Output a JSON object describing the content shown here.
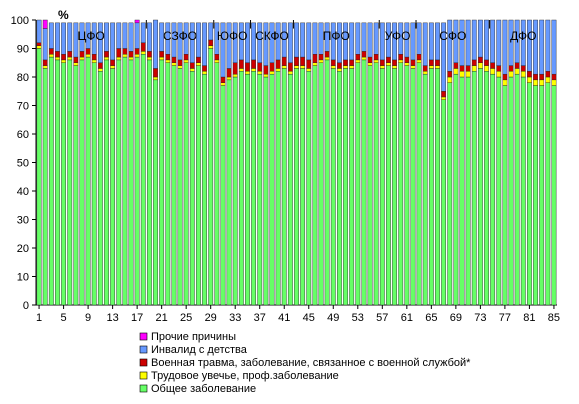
{
  "chart_data": {
    "type": "bar",
    "stacked": true,
    "ylabel": "%",
    "ylim": [
      0,
      100
    ],
    "yticks": [
      0,
      10,
      20,
      30,
      40,
      50,
      60,
      70,
      80,
      90,
      100
    ],
    "xticks": [
      1,
      5,
      9,
      13,
      17,
      21,
      25,
      29,
      33,
      37,
      41,
      45,
      49,
      53,
      57,
      61,
      65,
      69,
      73,
      77,
      81,
      85
    ],
    "grid": false,
    "legend_position": "bottom-left",
    "categories": [
      1,
      2,
      3,
      4,
      5,
      6,
      7,
      8,
      9,
      10,
      11,
      12,
      13,
      14,
      15,
      16,
      17,
      18,
      19,
      20,
      21,
      22,
      23,
      24,
      25,
      26,
      27,
      28,
      29,
      30,
      31,
      32,
      33,
      34,
      35,
      36,
      37,
      38,
      39,
      40,
      41,
      42,
      43,
      44,
      45,
      46,
      47,
      48,
      49,
      50,
      51,
      52,
      53,
      54,
      55,
      56,
      57,
      58,
      59,
      60,
      61,
      62,
      63,
      64,
      65,
      66,
      67,
      68,
      69,
      70,
      71,
      72,
      73,
      74,
      75,
      76,
      77,
      78,
      79,
      80,
      81,
      82,
      83,
      84,
      85
    ],
    "series": [
      {
        "name": "Общее заболевание",
        "color": "#66FF66",
        "values": [
          90,
          83,
          87,
          86,
          85,
          86,
          84,
          86,
          87,
          85,
          82,
          86,
          83,
          86,
          87,
          86,
          87,
          88,
          86,
          79,
          86,
          85,
          84,
          83,
          85,
          82,
          84,
          81,
          90,
          85,
          77,
          79,
          80,
          82,
          81,
          82,
          81,
          80,
          81,
          82,
          83,
          81,
          83,
          83,
          82,
          84,
          85,
          86,
          83,
          82,
          83,
          83,
          85,
          86,
          84,
          85,
          83,
          84,
          83,
          85,
          84,
          83,
          85,
          81,
          83,
          83,
          72,
          78,
          81,
          80,
          80,
          82,
          83,
          82,
          81,
          80,
          77,
          80,
          81,
          80,
          78,
          77,
          77,
          78,
          77
        ]
      },
      {
        "name": "Трудовое увечье, проф.заболевание",
        "color": "#FFFF00",
        "values": [
          1,
          1,
          1,
          1,
          1,
          1,
          1,
          1,
          1,
          1,
          1,
          1,
          1,
          1,
          1,
          1,
          1,
          1,
          1,
          1,
          1,
          1,
          1,
          1,
          1,
          1,
          1,
          1,
          1,
          1,
          1,
          1,
          1,
          1,
          1,
          1,
          1,
          1,
          1,
          1,
          1,
          1,
          1,
          1,
          1,
          1,
          1,
          1,
          1,
          1,
          1,
          1,
          1,
          1,
          1,
          1,
          1,
          1,
          1,
          1,
          1,
          1,
          1,
          1,
          1,
          1,
          1,
          2,
          2,
          2,
          2,
          2,
          2,
          2,
          2,
          2,
          2,
          2,
          2,
          2,
          2,
          2,
          2,
          2,
          2
        ]
      },
      {
        "name": "Военная травма, заболевание, связанное с военной службой*",
        "color": "#CC0000",
        "values": [
          1,
          2,
          2,
          2,
          2,
          2,
          2,
          2,
          2,
          2,
          2,
          2,
          2,
          3,
          2,
          2,
          2,
          3,
          2,
          3,
          2,
          2,
          2,
          2,
          2,
          2,
          2,
          2,
          2,
          2,
          2,
          3,
          4,
          3,
          3,
          3,
          3,
          3,
          3,
          3,
          3,
          3,
          3,
          3,
          3,
          3,
          2,
          2,
          2,
          2,
          2,
          2,
          2,
          2,
          2,
          2,
          2,
          2,
          2,
          2,
          2,
          2,
          2,
          2,
          2,
          2,
          2,
          2,
          2,
          2,
          2,
          2,
          2,
          2,
          2,
          2,
          2,
          2,
          2,
          2,
          2,
          2,
          2,
          2,
          2
        ]
      },
      {
        "name": "Инвалид с детства",
        "color": "#6699FF",
        "values": [
          8,
          11,
          9,
          10,
          11,
          10,
          12,
          10,
          9,
          11,
          14,
          10,
          13,
          9,
          9,
          10,
          9,
          7,
          10,
          17,
          10,
          11,
          12,
          13,
          11,
          14,
          12,
          15,
          6,
          11,
          19,
          16,
          14,
          13,
          14,
          13,
          14,
          15,
          14,
          13,
          12,
          14,
          12,
          12,
          13,
          11,
          11,
          10,
          13,
          14,
          13,
          13,
          11,
          10,
          12,
          11,
          13,
          12,
          13,
          11,
          12,
          13,
          11,
          15,
          13,
          13,
          24,
          18,
          15,
          16,
          16,
          14,
          13,
          14,
          15,
          16,
          19,
          16,
          15,
          16,
          18,
          19,
          19,
          18,
          19
        ]
      },
      {
        "name": "Прочие причины",
        "color": "#FF00FF",
        "values": [
          0,
          3,
          0,
          0,
          0,
          0,
          0,
          0,
          0,
          0,
          0,
          0,
          0,
          0,
          0,
          0,
          1,
          0,
          0,
          0,
          0,
          0,
          0,
          0,
          0,
          0,
          0,
          0,
          0,
          0,
          0,
          0,
          0,
          0,
          0,
          0,
          0,
          0,
          0,
          0,
          0,
          0,
          0,
          0,
          0,
          0,
          0,
          0,
          0,
          0,
          0,
          0,
          0,
          0,
          0,
          0,
          0,
          0,
          0,
          0,
          0,
          0,
          0,
          0,
          0,
          0,
          0,
          0,
          0,
          0,
          0,
          0,
          0,
          0,
          0,
          0,
          0,
          0,
          0,
          0,
          0,
          0,
          0,
          0,
          0
        ]
      }
    ],
    "regions": [
      {
        "label": "ЦФО",
        "start": 1,
        "end": 18
      },
      {
        "label": "СЗФО",
        "start": 19,
        "end": 29
      },
      {
        "label": "ЮФО",
        "start": 30,
        "end": 35
      },
      {
        "label": "СКФО",
        "start": 36,
        "end": 42
      },
      {
        "label": "ПФО",
        "start": 43,
        "end": 56
      },
      {
        "label": "УФО",
        "start": 57,
        "end": 62
      },
      {
        "label": "СФО",
        "start": 63,
        "end": 74
      },
      {
        "label": "ДФО",
        "start": 75,
        "end": 85
      }
    ],
    "legend_order": [
      "Прочие причины",
      "Инвалид с детства",
      "Военная травма, заболевание, связанное с военной службой*",
      "Трудовое увечье, проф.заболевание",
      "Общее заболевание"
    ]
  }
}
